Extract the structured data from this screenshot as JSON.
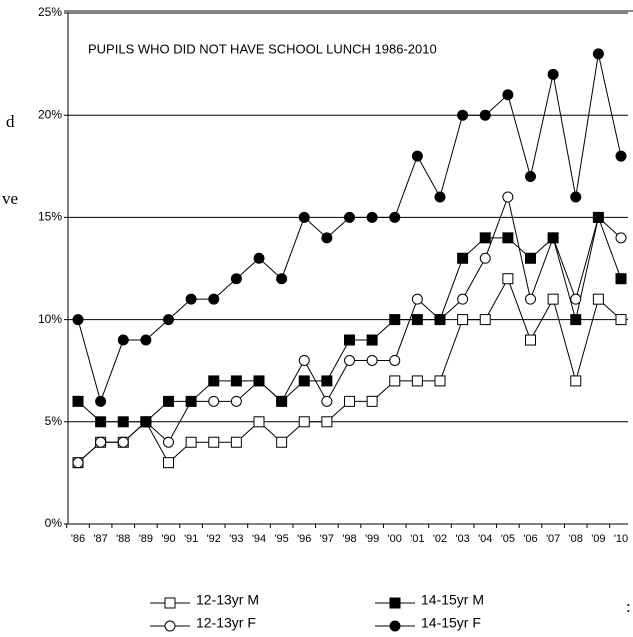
{
  "chart_data": {
    "type": "line",
    "title": "PUPILS WHO DID NOT HAVE SCHOOL LUNCH 1986-2010",
    "categories": [
      "'86",
      "'87",
      "'88",
      "'89",
      "'90",
      "'91",
      "'92",
      "'93",
      "'94",
      "'95",
      "'96",
      "'97",
      "'98",
      "'99",
      "'00",
      "'01",
      "'02",
      "'03",
      "'04",
      "'05",
      "'06",
      "'07",
      "'08",
      "'09",
      "'10"
    ],
    "series": [
      {
        "name": "12-13yr M",
        "color": "#000000",
        "marker": "square",
        "filled": false,
        "values": [
          3,
          4,
          4,
          5,
          3,
          4,
          4,
          4,
          5,
          4,
          5,
          5,
          6,
          6,
          7,
          7,
          7,
          10,
          10,
          12,
          9,
          11,
          7,
          11,
          10
        ]
      },
      {
        "name": "12-13yr F",
        "color": "#000000",
        "marker": "circle",
        "filled": false,
        "values": [
          3,
          4,
          4,
          5,
          4,
          6,
          6,
          6,
          7,
          6,
          8,
          6,
          8,
          8,
          8,
          11,
          10,
          11,
          13,
          16,
          11,
          14,
          11,
          15,
          14
        ]
      },
      {
        "name": "14-15yr M",
        "color": "#000000",
        "marker": "square",
        "filled": true,
        "values": [
          6,
          5,
          5,
          5,
          6,
          6,
          7,
          7,
          7,
          6,
          7,
          7,
          9,
          9,
          10,
          10,
          10,
          13,
          14,
          14,
          13,
          14,
          10,
          15,
          12
        ]
      },
      {
        "name": "14-15yr F",
        "color": "#000000",
        "marker": "circle",
        "filled": true,
        "values": [
          10,
          6,
          9,
          9,
          10,
          11,
          11,
          12,
          13,
          12,
          15,
          14,
          15,
          15,
          15,
          18,
          16,
          20,
          20,
          21,
          17,
          22,
          16,
          23,
          18
        ]
      }
    ],
    "ylim": [
      0,
      25
    ],
    "yticks": [
      {
        "value": 0,
        "label": "0%"
      },
      {
        "value": 5,
        "label": "5%"
      },
      {
        "value": 10,
        "label": "10%"
      },
      {
        "value": 15,
        "label": "15%"
      },
      {
        "value": 20,
        "label": "20%"
      },
      {
        "value": 25,
        "label": "25%"
      }
    ],
    "grid": true,
    "legend": "bottom",
    "side_text": [
      "d",
      "ve",
      ":"
    ]
  }
}
